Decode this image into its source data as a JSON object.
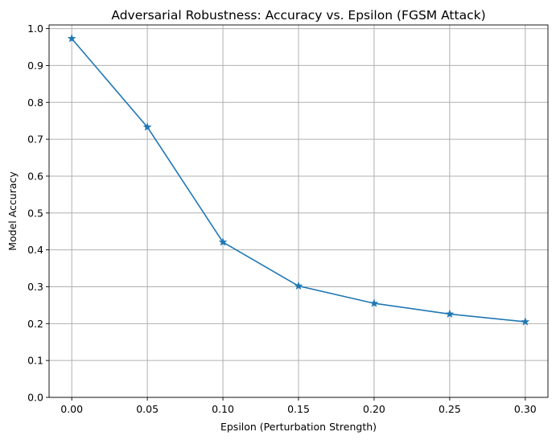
{
  "chart_data": {
    "type": "line",
    "title": "Adversarial Robustness: Accuracy vs. Epsilon (FGSM Attack)",
    "xlabel": "Epsilon (Perturbation Strength)",
    "ylabel": "Model Accuracy",
    "x": [
      0.0,
      0.05,
      0.1,
      0.15,
      0.2,
      0.25,
      0.3
    ],
    "x_tick_labels": [
      "0.00",
      "0.05",
      "0.10",
      "0.15",
      "0.20",
      "0.25",
      "0.30"
    ],
    "y_ticks": [
      0.0,
      0.1,
      0.2,
      0.3,
      0.4,
      0.5,
      0.6,
      0.7,
      0.8,
      0.9,
      1.0
    ],
    "y_tick_labels": [
      "0.0",
      "0.1",
      "0.2",
      "0.3",
      "0.4",
      "0.5",
      "0.6",
      "0.7",
      "0.8",
      "0.9",
      "1.0"
    ],
    "xlim": [
      -0.015,
      0.315
    ],
    "ylim": [
      0.0,
      1.01
    ],
    "grid": true,
    "legend": false,
    "series": [
      {
        "values": [
          0.973,
          0.733,
          0.421,
          0.302,
          0.255,
          0.226,
          0.205
        ],
        "color": "#1f77b4",
        "marker": "star-icon"
      }
    ]
  }
}
